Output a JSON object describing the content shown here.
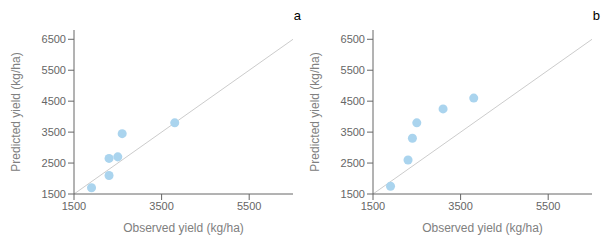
{
  "chart_data": [
    {
      "type": "scatter",
      "title": "a",
      "x": [
        1900,
        2300,
        2300,
        2500,
        2600,
        3800
      ],
      "values": [
        1700,
        2100,
        2650,
        2700,
        3450,
        3800
      ],
      "xlabel": "Observed  yield (kg/ha)",
      "ylabel": "Predicted yield (kg/ha)",
      "xlim": [
        1500,
        6500
      ],
      "ylim": [
        1500,
        6800
      ],
      "xticks": [
        1500,
        3500,
        5500
      ],
      "yticks": [
        1500,
        2500,
        3500,
        4500,
        5500,
        6500
      ],
      "color": "#aad4ee",
      "grid": false
    },
    {
      "type": "scatter",
      "title": "b",
      "x": [
        1900,
        2300,
        2400,
        2500,
        3100,
        3800
      ],
      "values": [
        1750,
        2600,
        3300,
        3800,
        4250,
        4600
      ],
      "xlabel": "Observed  yield (kg/ha)",
      "ylabel": "Predicted yield (kg/ha)",
      "xlim": [
        1500,
        6500
      ],
      "ylim": [
        1500,
        6800
      ],
      "xticks": [
        1500,
        3500,
        5500
      ],
      "yticks": [
        1500,
        2500,
        3500,
        4500,
        5500,
        6500
      ],
      "color": "#aad4ee",
      "grid": false
    }
  ]
}
